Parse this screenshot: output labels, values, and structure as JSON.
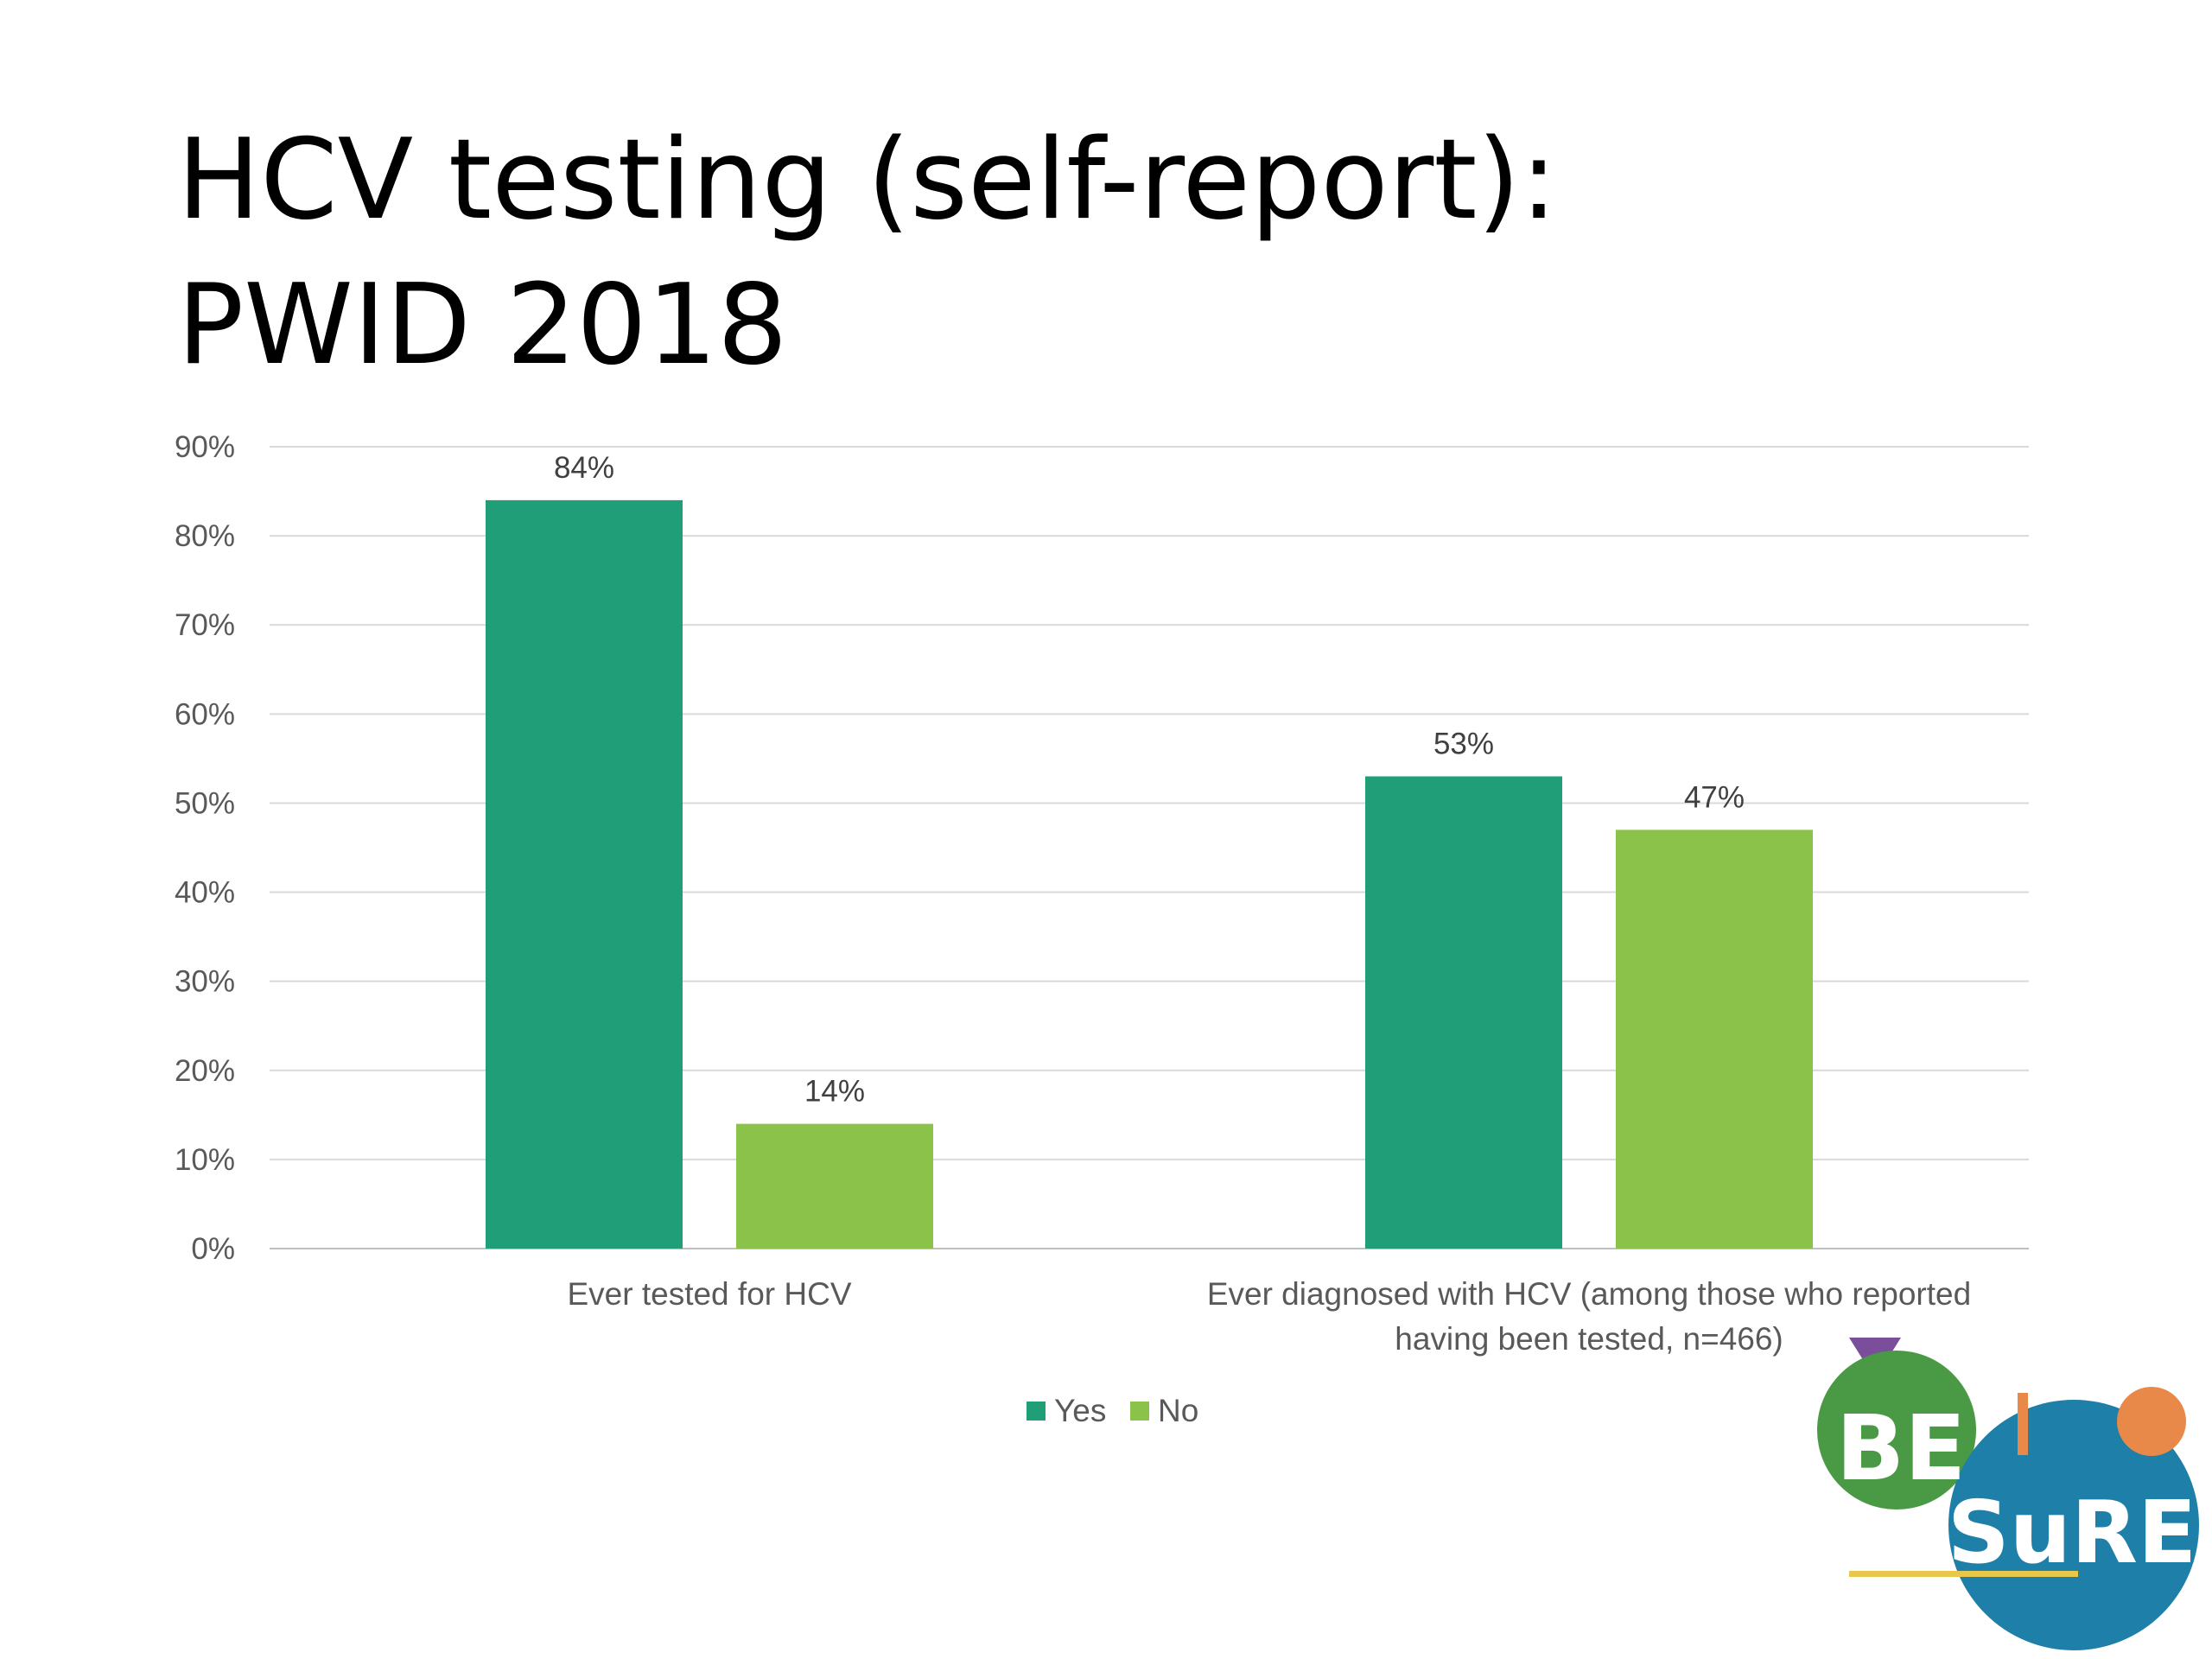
{
  "slide": {
    "title_line1": "HCV testing (self-report):",
    "title_line2": "PWID 2018"
  },
  "chart_data": {
    "type": "bar",
    "title": "HCV testing (self-report): PWID 2018",
    "categories": [
      [
        "Ever tested for HCV"
      ],
      [
        "Ever diagnosed with HCV  (among those who reported",
        "having been tested, n=466)"
      ]
    ],
    "series": [
      {
        "name": "Yes",
        "values": [
          84,
          53
        ],
        "labels": [
          "84%",
          "53%"
        ],
        "color": "#1f9e77"
      },
      {
        "name": "No",
        "values": [
          14,
          47
        ],
        "labels": [
          "14%",
          "47%"
        ],
        "color": "#8bc34a"
      }
    ],
    "ylim": [
      0,
      90
    ],
    "yticks": [
      0,
      10,
      20,
      30,
      40,
      50,
      60,
      70,
      80,
      90
    ],
    "ytick_labels": [
      "0%",
      "10%",
      "20%",
      "30%",
      "40%",
      "50%",
      "60%",
      "70%",
      "80%",
      "90%"
    ],
    "grid": true,
    "legend_position": "bottom"
  },
  "logo": {
    "text_top": "BE",
    "text_bottom": "SuRE",
    "colors": {
      "green": "#4a9a45",
      "blue": "#1e7fa8",
      "orange": "#e8894a",
      "purple": "#7a4e9b",
      "yellow": "#e8c84a"
    }
  }
}
